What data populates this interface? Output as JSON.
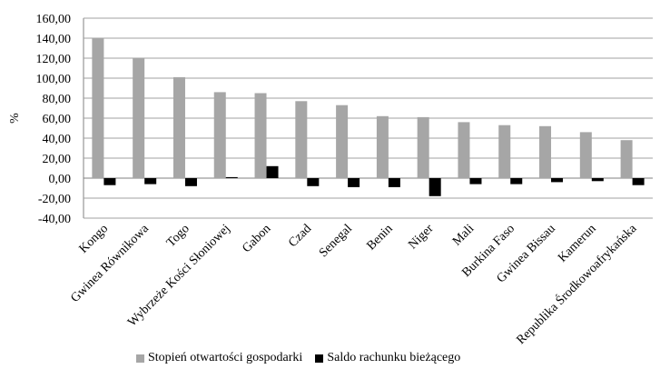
{
  "chart_data": {
    "type": "bar",
    "ylabel": "%",
    "ylim": [
      -40,
      160
    ],
    "yticks": [
      "-40,00",
      "-20,00",
      "0,00",
      "20,00",
      "40,00",
      "60,00",
      "80,00",
      "100,00",
      "120,00",
      "140,00",
      "160,00"
    ],
    "categories": [
      "Kongo",
      "Gwinea Równikowa",
      "Togo",
      "Wybrzeże Kości Słoniowej",
      "Gabon",
      "Czad",
      "Senegal",
      "Benin",
      "Niger",
      "Mali",
      "Burkina Faso",
      "Gwinea Bissau",
      "Kamerun",
      "Republika Środkowoafrykańska"
    ],
    "series": [
      {
        "name": "Stopień otwartości gospodarki",
        "color": "#a6a6a6",
        "values": [
          140,
          120,
          101,
          86,
          85,
          77,
          73,
          62,
          61,
          56,
          53,
          52,
          46,
          38
        ]
      },
      {
        "name": "Saldo rachunku bieżącego",
        "color": "#000000",
        "values": [
          -7,
          -6,
          -8,
          1,
          12,
          -8,
          -9,
          -9,
          -18,
          -6,
          -6,
          -4,
          -3,
          -7
        ]
      }
    ],
    "grid": true,
    "legend": "bottom"
  }
}
